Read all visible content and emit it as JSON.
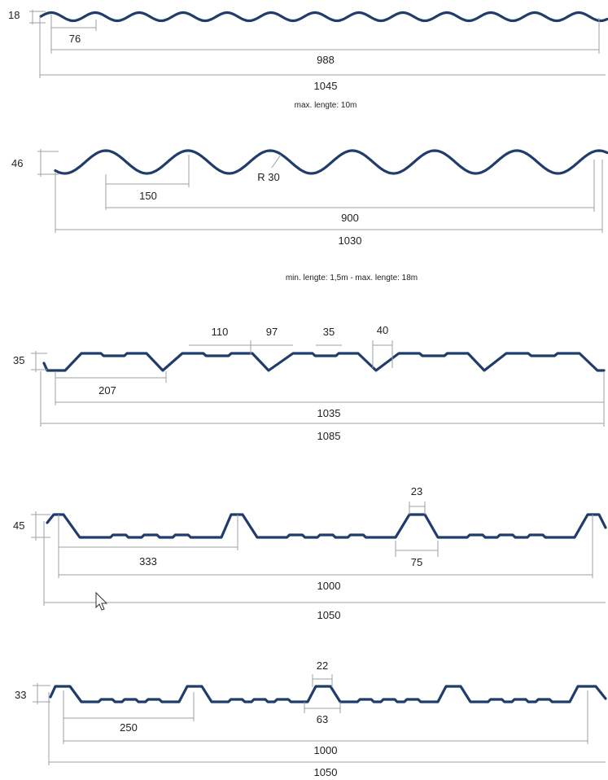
{
  "profile1": {
    "height": "18",
    "pitch": "76",
    "cover_width": "988",
    "total_width": "1045",
    "note": "max. lengte: 10m"
  },
  "profile2": {
    "height": "46",
    "pitch": "150",
    "radius": "R 30",
    "cover_width": "900",
    "total_width": "1030",
    "note": "min. lengte: 1,5m - max. lengte: 18m"
  },
  "profile3": {
    "height": "35",
    "pitch": "207",
    "dim_a": "110",
    "dim_b": "97",
    "dim_c": "35",
    "dim_d": "40",
    "cover_width": "1035",
    "total_width": "1085"
  },
  "profile4": {
    "height": "45",
    "pitch": "333",
    "top_width": "23",
    "base_width": "75",
    "cover_width": "1000",
    "total_width": "1050"
  },
  "profile5": {
    "height": "33",
    "pitch": "250",
    "top_width": "22",
    "base_width": "63",
    "cover_width": "1000",
    "total_width": "1050"
  },
  "colors": {
    "profile_stroke": "#1f3c6b",
    "dimension_line": "#9aa0a6"
  }
}
